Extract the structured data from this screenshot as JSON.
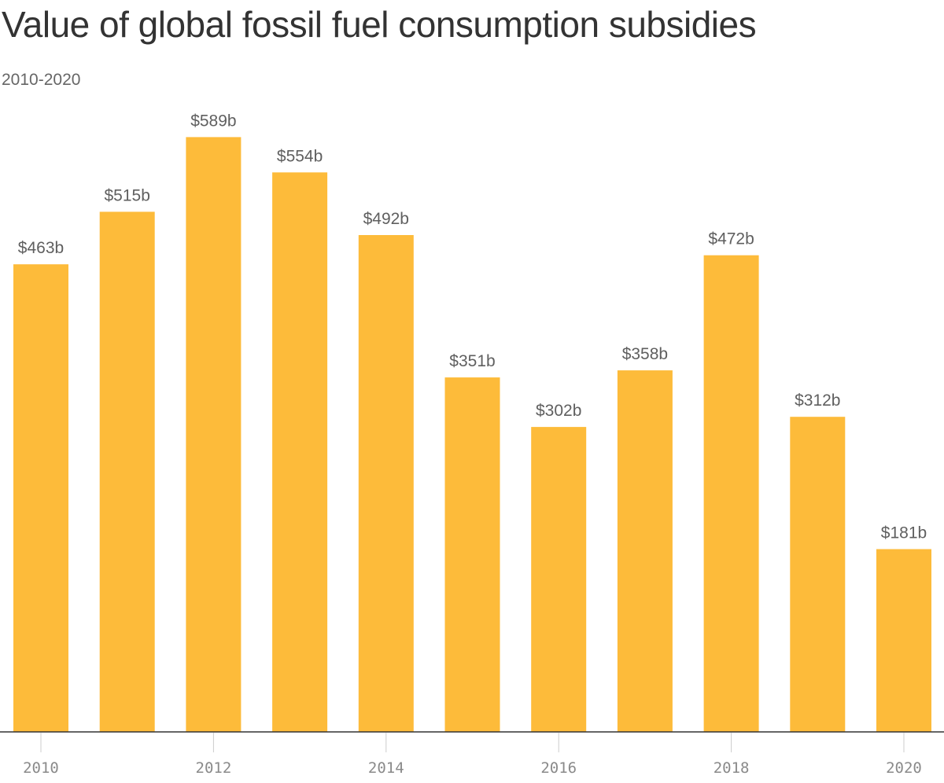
{
  "title": "Value of global fossil fuel consumption subsidies",
  "subtitle": "2010-2020",
  "colors": {
    "bar": "#FDBB3A",
    "title": "#333333",
    "subtitle": "#666666",
    "value_label": "#5f5f5f",
    "tick_label": "#8a8a8a",
    "axis": "#333333",
    "tick": "#cccccc"
  },
  "chart_data": {
    "type": "bar",
    "categories": [
      "2010",
      "2011",
      "2012",
      "2013",
      "2014",
      "2015",
      "2016",
      "2017",
      "2018",
      "2019",
      "2020"
    ],
    "values": [
      463,
      515,
      589,
      554,
      492,
      351,
      302,
      358,
      472,
      312,
      181
    ],
    "data_labels": [
      "$463b",
      "$515b",
      "$589b",
      "$554b",
      "$492b",
      "$351b",
      "$302b",
      "$358b",
      "$472b",
      "$312b",
      "$181b"
    ],
    "x_tick_labels": [
      "2010",
      "2012",
      "2014",
      "2016",
      "2018",
      "2020"
    ],
    "title": "Value of global fossil fuel consumption subsidies",
    "subtitle": "2010-2020",
    "xlabel": "",
    "ylabel": "",
    "ylim": [
      0,
      600
    ],
    "grid": false,
    "legend": "none"
  }
}
